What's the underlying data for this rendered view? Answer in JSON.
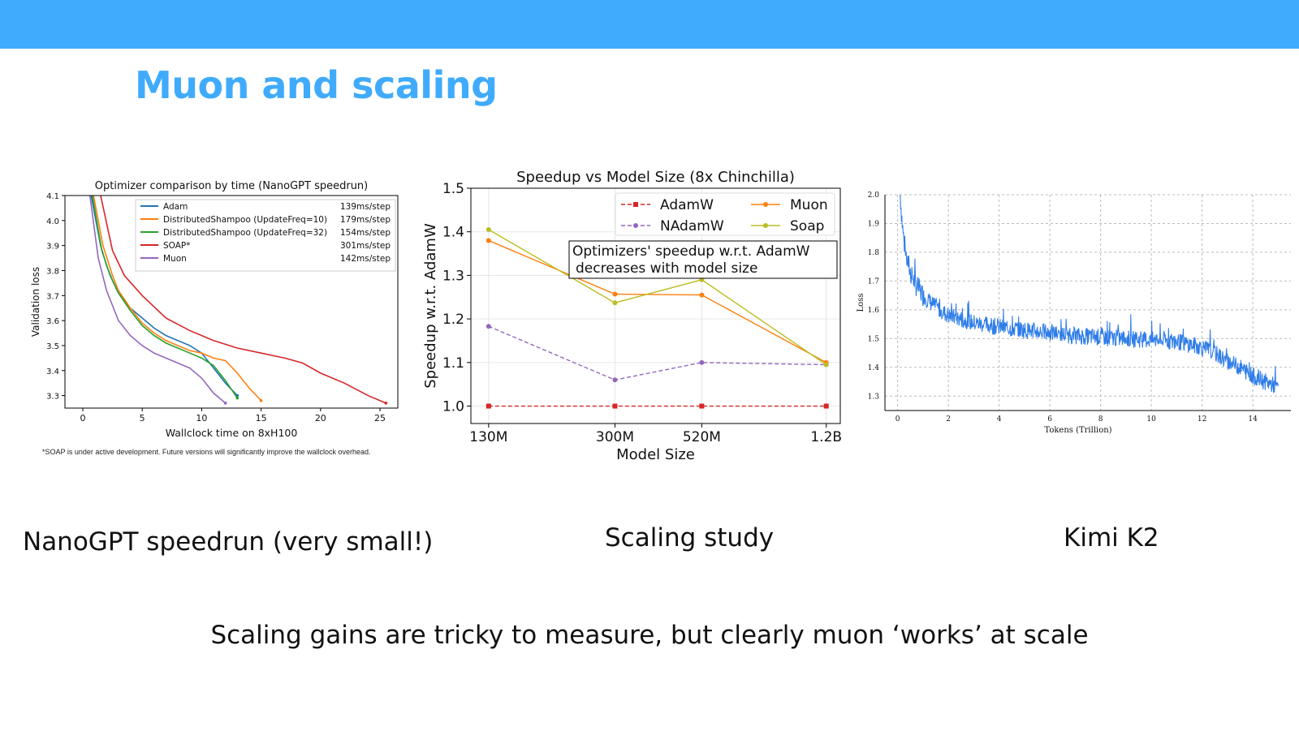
{
  "slide": {
    "title": "Muon and scaling",
    "captions": [
      "NanoGPT speedrun (very small!)",
      "Scaling study",
      "Kimi K2"
    ],
    "bottom_text": "Scaling gains are tricky to measure, but clearly muon ‘works’ at scale",
    "footnote": "*SOAP is under active development. Future versions will significantly improve the wallclock overhead.",
    "accent_color": "#40abfc"
  },
  "chart_data": [
    {
      "type": "line",
      "title": "Optimizer comparison by time (NanoGPT speedrun)",
      "xlabel": "Wallclock time on 8xH100",
      "ylabel": "Validation loss",
      "xlim": [
        -1.5,
        26.5
      ],
      "ylim": [
        3.25,
        4.1
      ],
      "xticks": [
        0,
        5,
        10,
        15,
        20,
        25
      ],
      "yticks": [
        3.3,
        3.4,
        3.5,
        3.6,
        3.7,
        3.8,
        3.9,
        4.0,
        4.1
      ],
      "legend_position": "top-right",
      "series": [
        {
          "name": "Adam",
          "rate": "139ms/step",
          "color": "#1f77b4",
          "x": [
            0.7,
            1.5,
            2,
            2.5,
            3,
            4,
            5,
            6,
            7,
            8,
            9,
            10,
            11,
            12,
            13
          ],
          "y": [
            4.1,
            3.9,
            3.82,
            3.76,
            3.71,
            3.65,
            3.61,
            3.57,
            3.54,
            3.52,
            3.5,
            3.47,
            3.41,
            3.35,
            3.3
          ]
        },
        {
          "name": "DistributedShampoo (UpdateFreq=10)",
          "rate": "179ms/step",
          "color": "#ff7f0e",
          "x": [
            0.9,
            1.7,
            2.5,
            3,
            4,
            5,
            6,
            7,
            8,
            9,
            10,
            11,
            12,
            13,
            14,
            15
          ],
          "y": [
            4.1,
            3.9,
            3.78,
            3.72,
            3.65,
            3.59,
            3.55,
            3.52,
            3.5,
            3.48,
            3.47,
            3.45,
            3.44,
            3.39,
            3.33,
            3.28
          ]
        },
        {
          "name": "DistributedShampoo (UpdateFreq=32)",
          "rate": "154ms/step",
          "color": "#2ca02c",
          "x": [
            0.8,
            1.6,
            2.3,
            3,
            4,
            5,
            6,
            7,
            8,
            9,
            10,
            11,
            12,
            13
          ],
          "y": [
            4.1,
            3.88,
            3.78,
            3.71,
            3.64,
            3.58,
            3.54,
            3.51,
            3.49,
            3.47,
            3.45,
            3.42,
            3.36,
            3.29
          ]
        },
        {
          "name": "SOAP*",
          "rate": "301ms/step",
          "color": "#d62728",
          "x": [
            1.5,
            2.5,
            3.5,
            5,
            7,
            9,
            11,
            13,
            15,
            17,
            18.5,
            20,
            22,
            24,
            25.5
          ],
          "y": [
            4.1,
            3.88,
            3.78,
            3.7,
            3.61,
            3.56,
            3.52,
            3.49,
            3.47,
            3.45,
            3.43,
            3.39,
            3.35,
            3.3,
            3.27
          ]
        },
        {
          "name": "Muon",
          "rate": "142ms/step",
          "color": "#9467bd",
          "x": [
            0.6,
            1.3,
            2,
            2.5,
            3,
            4,
            5,
            6,
            7,
            8,
            9,
            10,
            11,
            12
          ],
          "y": [
            4.1,
            3.85,
            3.72,
            3.66,
            3.6,
            3.54,
            3.5,
            3.47,
            3.45,
            3.43,
            3.41,
            3.37,
            3.31,
            3.27
          ]
        }
      ]
    },
    {
      "type": "line",
      "title": "Speedup vs Model Size (8x Chinchilla)",
      "xlabel": "Model Size",
      "ylabel": "Speedup w.r.t. AdamW",
      "categories": [
        "130M",
        "300M",
        "520M",
        "1.2B"
      ],
      "ylim": [
        0.96,
        1.5
      ],
      "yticks": [
        1.0,
        1.1,
        1.2,
        1.3,
        1.4,
        1.5
      ],
      "grid": true,
      "legend_position": "top-right",
      "annotation": [
        "Optimizers' speedup w.r.t. AdamW",
        "decreases with model size"
      ],
      "series": [
        {
          "name": "AdamW",
          "color": "#d62728",
          "dash": true,
          "values": [
            1.0,
            1.0,
            1.0,
            1.0
          ]
        },
        {
          "name": "NAdamW",
          "color": "#9467bd",
          "dash": true,
          "values": [
            1.183,
            1.06,
            1.1,
            1.095
          ]
        },
        {
          "name": "Muon",
          "color": "#ff7f0e",
          "dash": false,
          "values": [
            1.38,
            1.257,
            1.255,
            1.1
          ]
        },
        {
          "name": "Soap",
          "color": "#bcbd22",
          "dash": false,
          "values": [
            1.405,
            1.237,
            1.29,
            1.095
          ]
        }
      ]
    },
    {
      "type": "line",
      "xlabel": "Tokens (Trillion)",
      "ylabel": "Loss",
      "xlim": [
        -0.5,
        15.5
      ],
      "ylim": [
        1.25,
        2.0
      ],
      "xticks": [
        0,
        2,
        4,
        6,
        8,
        10,
        12,
        14
      ],
      "yticks": [
        1.3,
        1.4,
        1.5,
        1.6,
        1.7,
        1.8,
        1.9,
        2.0
      ],
      "grid": true,
      "series": [
        {
          "name": "",
          "color": "#2f7de8",
          "x": [
            0.1,
            0.2,
            0.3,
            0.5,
            0.7,
            1,
            1.5,
            2,
            3,
            4,
            5,
            6,
            7,
            8,
            9,
            10,
            11,
            12,
            12.5,
            13,
            13.5,
            14,
            14.5,
            15
          ],
          "y": [
            2.0,
            1.88,
            1.8,
            1.73,
            1.69,
            1.65,
            1.61,
            1.58,
            1.555,
            1.54,
            1.53,
            1.52,
            1.51,
            1.505,
            1.5,
            1.495,
            1.49,
            1.47,
            1.45,
            1.42,
            1.4,
            1.37,
            1.35,
            1.33
          ]
        }
      ]
    }
  ]
}
